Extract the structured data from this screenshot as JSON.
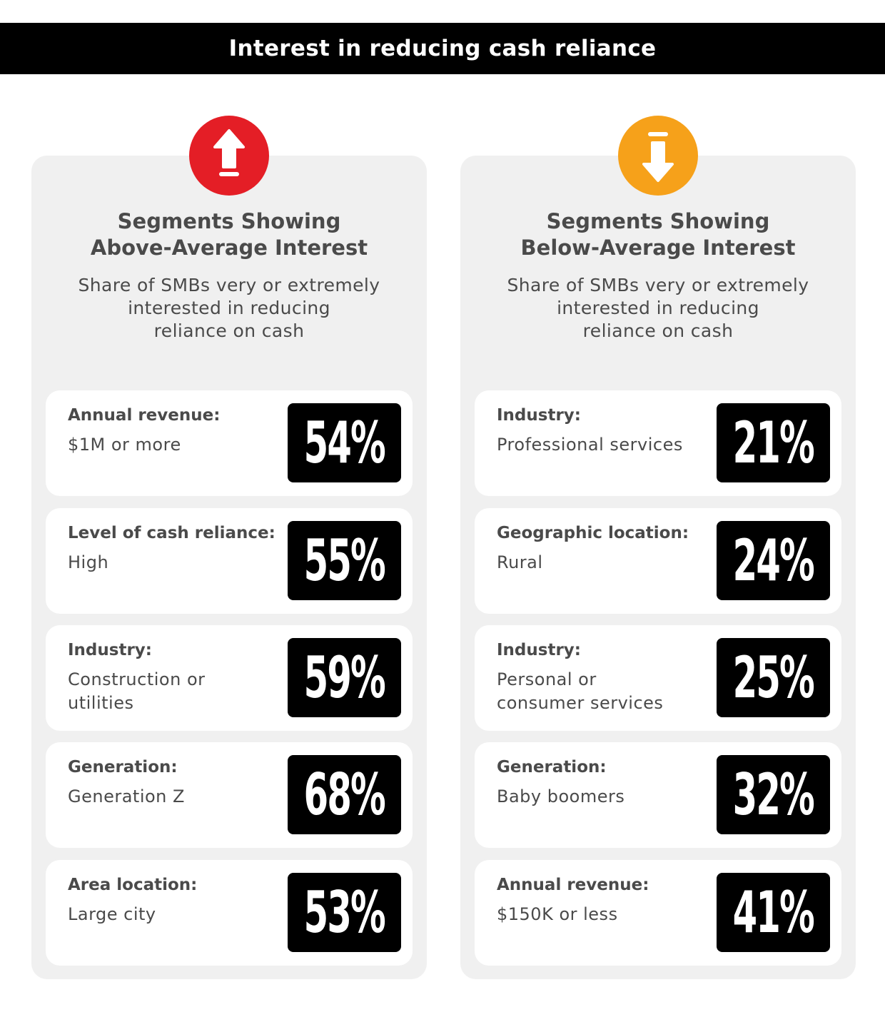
{
  "title": "Interest in reducing cash reliance",
  "colors": {
    "up_badge": "#e41e26",
    "down_badge": "#f6a11a",
    "panel_bg": "#f0f0f0",
    "text": "#4a4a4a"
  },
  "left": {
    "icon": "arrow-up-icon",
    "heading_line1": "Segments Showing",
    "heading_line2": "Above-Average Interest",
    "subtitle_line1": "Share of SMBs very or extremely",
    "subtitle_line2": "interested in reducing",
    "subtitle_line3": "reliance on cash",
    "items": [
      {
        "category": "Annual revenue:",
        "value_line1": "$1M or more",
        "value_line2": "",
        "percent": "54%"
      },
      {
        "category": "Level of cash reliance:",
        "value_line1": "High",
        "value_line2": "",
        "percent": "55%"
      },
      {
        "category": "Industry:",
        "value_line1": "Construction or",
        "value_line2": "utilities",
        "percent": "59%"
      },
      {
        "category": "Generation:",
        "value_line1": "Generation Z",
        "value_line2": "",
        "percent": "68%"
      },
      {
        "category": "Area location:",
        "value_line1": "Large city",
        "value_line2": "",
        "percent": "53%"
      }
    ]
  },
  "right": {
    "icon": "arrow-down-icon",
    "heading_line1": "Segments Showing",
    "heading_line2": "Below-Average Interest",
    "subtitle_line1": "Share of SMBs very or extremely",
    "subtitle_line2": "interested in reducing",
    "subtitle_line3": "reliance on cash",
    "items": [
      {
        "category": "Industry:",
        "value_line1": "Professional services",
        "value_line2": "",
        "percent": "21%"
      },
      {
        "category": "Geographic location:",
        "value_line1": "Rural",
        "value_line2": "",
        "percent": "24%"
      },
      {
        "category": "Industry:",
        "value_line1": "Personal or",
        "value_line2": "consumer services",
        "percent": "25%"
      },
      {
        "category": "Generation:",
        "value_line1": "Baby boomers",
        "value_line2": "",
        "percent": "32%"
      },
      {
        "category": "Annual revenue:",
        "value_line1": "$150K or less",
        "value_line2": "",
        "percent": "41%"
      }
    ]
  }
}
